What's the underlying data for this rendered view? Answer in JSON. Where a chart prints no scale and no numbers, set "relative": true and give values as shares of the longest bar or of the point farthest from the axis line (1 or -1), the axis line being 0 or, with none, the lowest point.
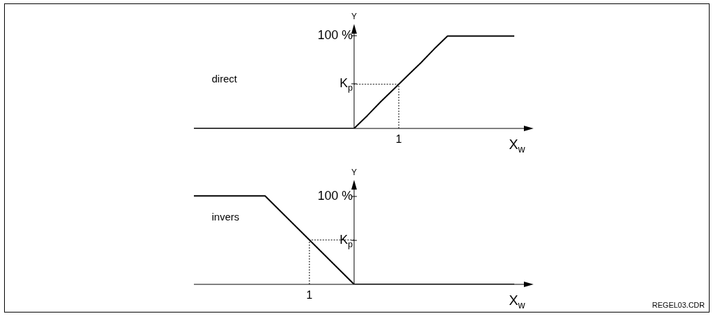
{
  "chart_data": [
    {
      "type": "line",
      "relative": true,
      "xlabel": "X$_{w}$",
      "ylabel": "Y",
      "categories": [
        null,
        null,
        null,
        null,
        null,
        null,
        null,
        null,
        null,
        null,
        null,
        null,
        null,
        null,
        null,
        null,
        null,
        null,
        null,
        null,
        null,
        null,
        null,
        null,
        null
      ],
      "annotations": [
        "direct",
        "100 %",
        "K$_{p}$",
        "1"
      ],
      "series": [
        {
          "color": "#000000",
          "values": [
            0,
            0,
            0,
            0,
            0,
            0,
            0,
            0,
            0,
            0,
            0,
            0,
            0,
            0.14,
            0.29,
            0.43,
            0.57,
            0.71,
            0.86,
            1,
            1,
            1,
            1,
            1,
            1
          ]
        }
      ]
    },
    {
      "type": "line",
      "relative": true,
      "xlabel": "X$_{w}$",
      "ylabel": "Y",
      "categories": [
        null,
        null,
        null,
        null,
        null,
        null,
        null,
        null,
        null,
        null,
        null,
        null,
        null,
        null,
        null,
        null,
        null,
        null,
        null
      ],
      "annotations": [
        "invers",
        "REGEL03.CDR",
        "100 %",
        "K$_{p}$",
        "1"
      ],
      "series": [
        {
          "color": "#000000",
          "values": [
            1,
            1,
            1,
            1,
            1,
            0.8,
            0.6,
            0.4,
            0.2,
            0,
            0,
            0,
            0,
            0,
            0,
            0,
            0,
            0,
            0
          ]
        }
      ]
    }
  ]
}
